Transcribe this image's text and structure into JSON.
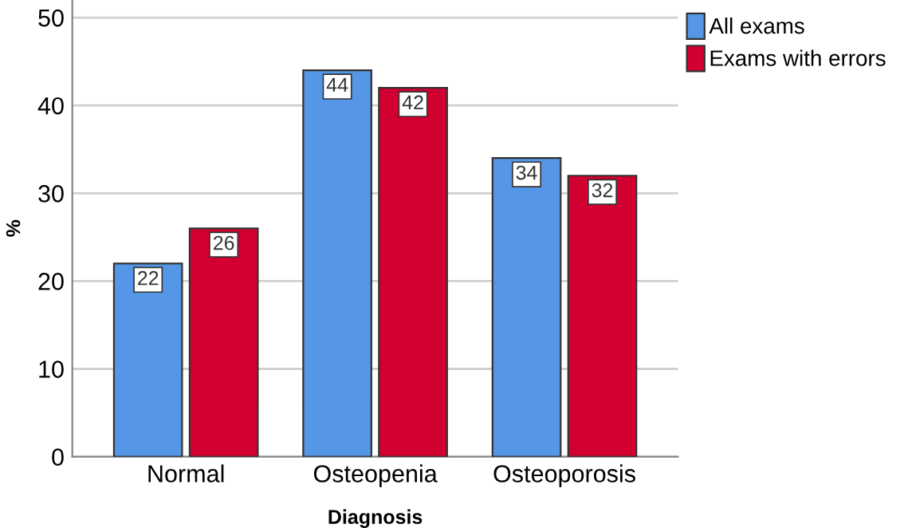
{
  "chart_data": {
    "type": "bar",
    "xlabel": "Diagnosis",
    "ylabel": "%",
    "categories": [
      "Normal",
      "Osteopenia",
      "Osteoporosis"
    ],
    "series": [
      {
        "name": "All exams",
        "color": "#5596e6",
        "values": [
          22,
          44,
          34
        ]
      },
      {
        "name": "Exams with errors",
        "color": "#d20030",
        "values": [
          26,
          42,
          32
        ]
      }
    ],
    "ylim": [
      0,
      52
    ],
    "yticks": [
      0,
      10,
      20,
      30,
      40,
      50
    ],
    "grid": "y",
    "legend": "top right",
    "data_labels": true
  }
}
